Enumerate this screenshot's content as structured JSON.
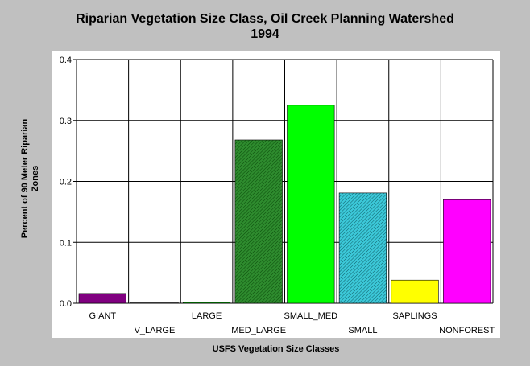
{
  "chart_data": {
    "type": "bar",
    "title": "Riparian Vegetation Size Class, Oil Creek Planning Watershed",
    "subtitle": "1994",
    "xlabel": "USFS Vegetation Size Classes",
    "ylabel_line1": "Percent of 90 Meter Riparian",
    "ylabel_line2": "Zones",
    "ylim": [
      0,
      0.4
    ],
    "yticks": [
      "0.0",
      "0.1",
      "0.2",
      "0.3",
      "0.4"
    ],
    "grid": true,
    "categories": [
      "GIANT",
      "V_LARGE",
      "LARGE",
      "MED_LARGE",
      "SMALL_MED",
      "SMALL",
      "SAPLINGS",
      "NONFOREST"
    ],
    "values": [
      0.016,
      0.0,
      0.002,
      0.268,
      0.325,
      0.181,
      0.038,
      0.17
    ],
    "colors": [
      "#800080",
      "#808080",
      "#008000",
      "#2e8b2e",
      "#00ff00",
      "#20a0b0",
      "#ffff00",
      "#ff00ff"
    ],
    "patterns": [
      false,
      false,
      false,
      true,
      false,
      true,
      false,
      false
    ]
  }
}
